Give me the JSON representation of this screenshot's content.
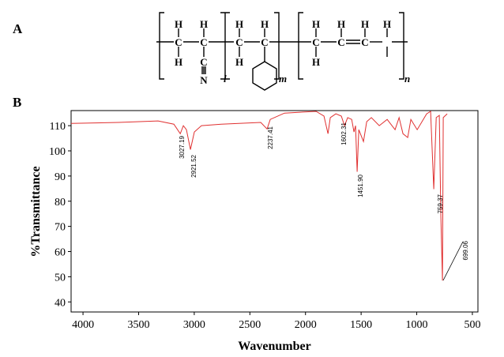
{
  "panel_labels": [
    "A",
    "B"
  ],
  "structure": {
    "atoms": [
      "H",
      "C",
      "H",
      "H",
      "C",
      "C",
      "N",
      "H",
      "C",
      "H",
      "H",
      "C",
      "H",
      "C",
      "H",
      "H",
      "C",
      "H",
      "C",
      "H"
    ],
    "subscripts": [
      "l",
      "m",
      "n"
    ]
  },
  "chart_data": {
    "type": "line",
    "x_label": "Wavenumber",
    "y_label": "%Transmittance",
    "xlim": [
      4107,
      450
    ],
    "ylim": [
      36,
      116
    ],
    "xticks": [
      4000,
      3500,
      3000,
      2500,
      2000,
      1500,
      1000,
      500
    ],
    "yticks": [
      40,
      50,
      60,
      70,
      80,
      90,
      100,
      110
    ],
    "x": [
      4107,
      3680,
      3325,
      3183,
      3126,
      3098,
      3070,
      3034,
      2999,
      2935,
      2757,
      2402,
      2345,
      2317,
      2189,
      1905,
      1834,
      1798,
      1777,
      1727,
      1678,
      1649,
      1621,
      1585,
      1564,
      1550,
      1536,
      1521,
      1479,
      1450,
      1408,
      1337,
      1266,
      1195,
      1159,
      1124,
      1081,
      1053,
      996,
      953,
      911,
      875,
      847,
      825,
      797,
      783,
      769,
      762,
      726
    ],
    "series": [
      {
        "color": "#e03030",
        "values": [
          110.9,
          111.3,
          111.9,
          110.6,
          106.8,
          110,
          108.4,
          100.5,
          107.5,
          110,
          110.6,
          111.3,
          108.7,
          112.5,
          115,
          115.7,
          113.8,
          106.8,
          113.2,
          114.7,
          113.8,
          110,
          113.2,
          112.5,
          107.5,
          110,
          91.7,
          108.4,
          103.7,
          111.6,
          113.2,
          110,
          112.5,
          108.4,
          113.2,
          106.8,
          105.3,
          112.5,
          108.4,
          111.6,
          114.7,
          115.7,
          84.8,
          113.2,
          114.1,
          73.7,
          48.5,
          113.2,
          114.7
        ]
      }
    ],
    "annotations": [
      "3027.19",
      "2921.52",
      "2237.41",
      "1602.31",
      "1451.90",
      "759.37",
      "699.06"
    ]
  }
}
